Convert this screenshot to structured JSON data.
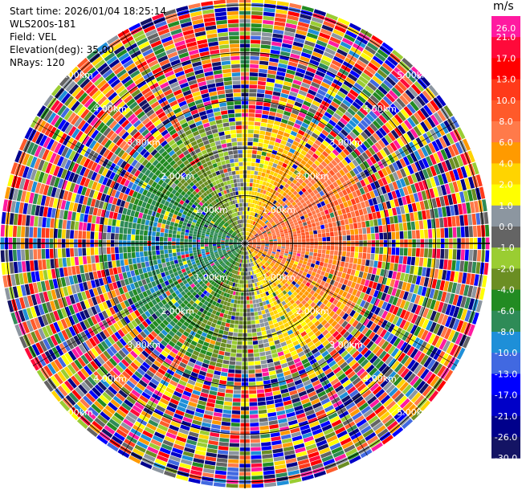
{
  "header": {
    "start_time": "Start time: 2026/01/04 18:25:14",
    "instrument": "WLS200s-181",
    "field": "Field: VEL",
    "elevation": "Elevation(deg): 35.00",
    "nrays": "NRays: 120"
  },
  "chart_data": {
    "type": "heatmap",
    "projection": "polar-ppi",
    "field": "VEL",
    "nrays": 120,
    "range_rings_km": [
      1,
      2,
      3,
      4,
      5
    ],
    "range_ring_labels": [
      "1.00km",
      "2.00km",
      "3.00km",
      "4.00km",
      "5.00km"
    ],
    "colorbar": {
      "unit": "m/s",
      "ticks": [
        "26.0",
        "21.0",
        "17.0",
        "13.0",
        "10.0",
        "8.0",
        "6.0",
        "4.0",
        "2.0",
        "1.0",
        "0.0",
        "-1.0",
        "-2.0",
        "-4.0",
        "-6.0",
        "-8.0",
        "-10.0",
        "-13.0",
        "-17.0",
        "-21.0",
        "-26.0",
        "-30.0"
      ],
      "colors": [
        "#ff1aa0",
        "#ff0a3a",
        "#ff0000",
        "#ff3a1a",
        "#ff5a2a",
        "#ff7a4a",
        "#ff9a00",
        "#ffd400",
        "#ffff00",
        "#8c96a0",
        "#646464",
        "#9acd32",
        "#6b8e23",
        "#228b22",
        "#2e8b57",
        "#1e8fd8",
        "#4169e1",
        "#0000ff",
        "#0000c8",
        "#00008b",
        "#141464"
      ]
    }
  }
}
